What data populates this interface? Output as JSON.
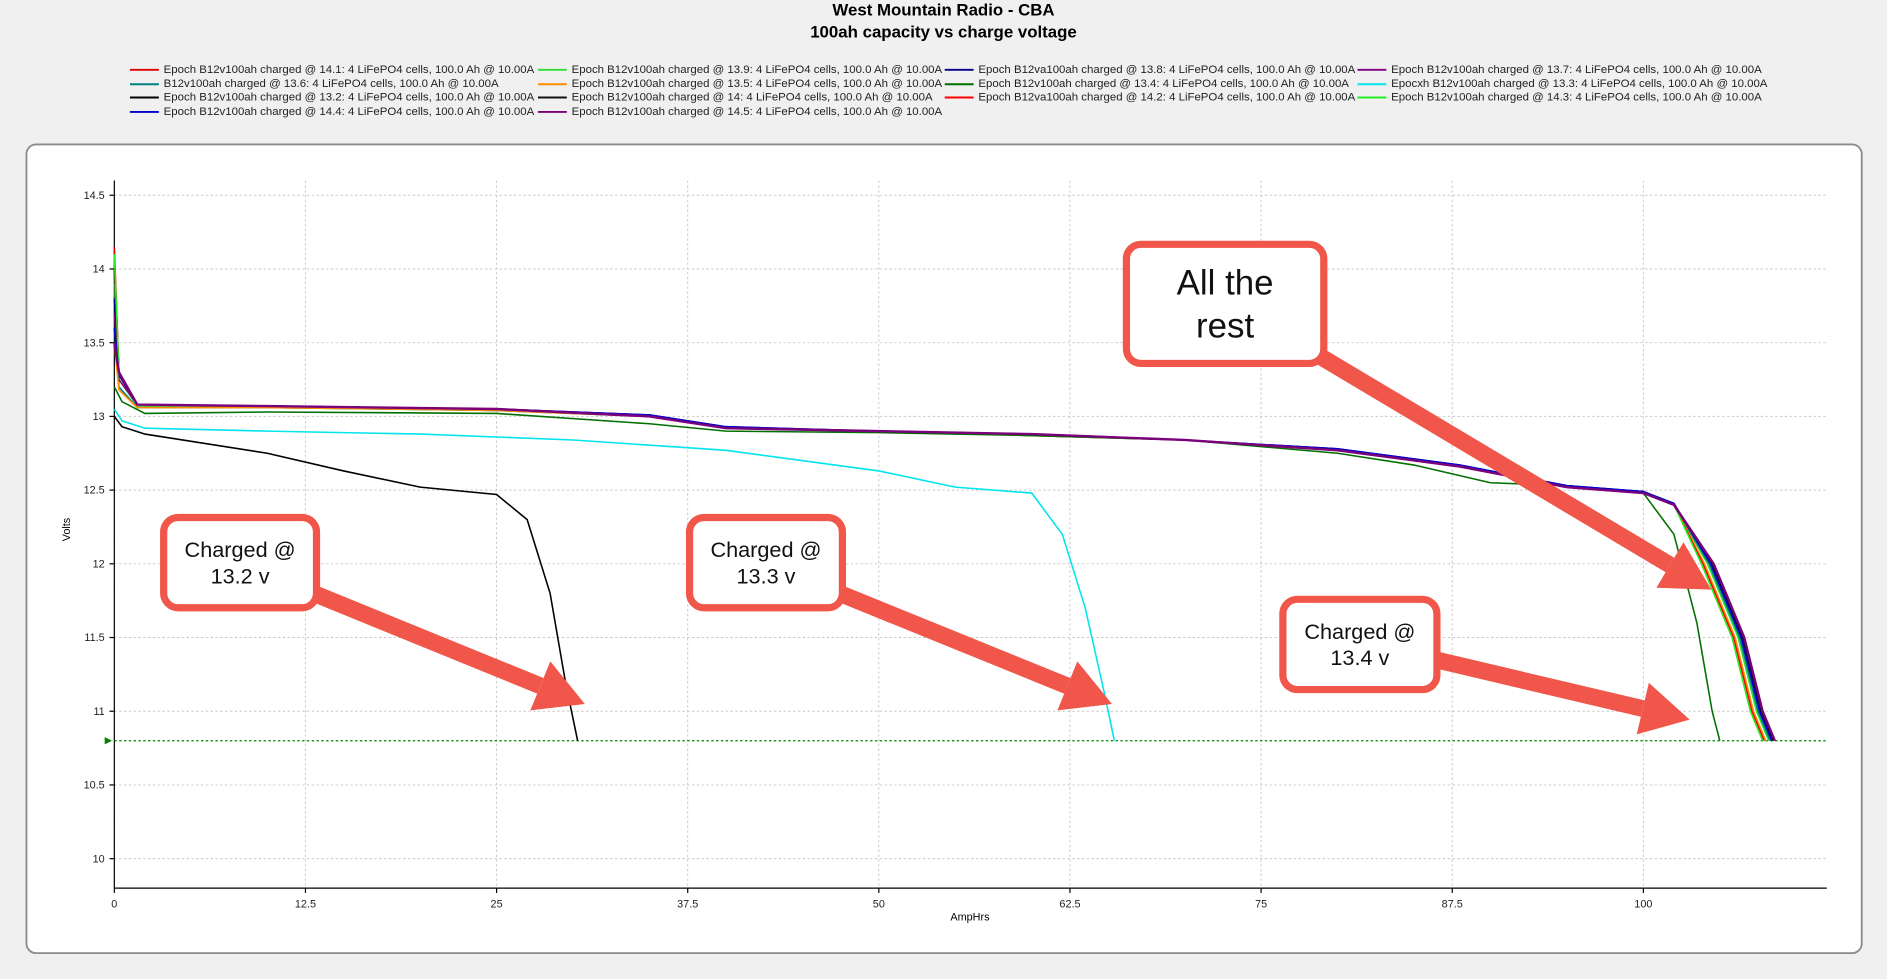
{
  "chart_data": {
    "type": "line",
    "title": "West Mountain Radio - CBA",
    "subtitle": "100ah capacity vs charge voltage",
    "x_label": "AmpHrs",
    "y_label": "Volts",
    "xlim": [
      0,
      112
    ],
    "ylim": [
      9.8,
      14.6
    ],
    "xticks": [
      0,
      12.5,
      25,
      37.5,
      50,
      62.5,
      75,
      87.5,
      100
    ],
    "yticks": [
      10,
      10.5,
      11,
      11.5,
      12,
      12.5,
      13,
      13.5,
      14,
      14.5
    ],
    "grid": true,
    "legend_position": "top",
    "hlines": [
      {
        "value": 10.8,
        "color": "#008000"
      }
    ],
    "series": [
      {
        "name": "Epoch B12v100ah charged @ 14.1: 4 LiFePO4 cells, 100.0 Ah @ 10.00A",
        "color": "#e00000",
        "x": [
          0,
          0.3,
          1.5,
          10,
          25,
          35,
          40,
          50,
          60,
          70,
          80,
          88,
          95,
          100,
          102,
          104.5,
          106.5,
          107.7,
          108.5
        ],
        "values": [
          14.15,
          13.3,
          13.08,
          13.07,
          13.05,
          13.0,
          12.92,
          12.9,
          12.88,
          12.84,
          12.77,
          12.66,
          12.52,
          12.48,
          12.4,
          12.0,
          11.5,
          11.0,
          10.8
        ]
      },
      {
        "name": "Epoch B12v100ah charged @ 13.9: 4 LiFePO4 cells, 100.0 Ah @ 10.00A",
        "color": "#33dd33",
        "x": [
          0,
          0.3,
          1.5,
          10,
          25,
          35,
          40,
          50,
          60,
          70,
          80,
          88,
          95,
          100,
          102,
          104.2,
          106.2,
          107.4,
          108.2
        ],
        "values": [
          13.9,
          13.25,
          13.07,
          13.06,
          13.04,
          13.0,
          12.92,
          12.9,
          12.87,
          12.84,
          12.77,
          12.66,
          12.52,
          12.48,
          12.4,
          12.0,
          11.5,
          11.0,
          10.8
        ]
      },
      {
        "name": "Epoch B12va100ah charged @ 13.8: 4 LiFePO4 cells, 100.0 Ah @ 10.00A",
        "color": "#00008b",
        "x": [
          0,
          0.3,
          1.5,
          10,
          25,
          35,
          40,
          50,
          60,
          70,
          80,
          88,
          95,
          100,
          102,
          104.4,
          106.4,
          107.6,
          108.4
        ],
        "values": [
          13.8,
          13.28,
          13.08,
          13.07,
          13.05,
          13.01,
          12.93,
          12.9,
          12.88,
          12.84,
          12.78,
          12.67,
          12.53,
          12.49,
          12.41,
          12.0,
          11.5,
          11.0,
          10.8
        ]
      },
      {
        "name": "Epoch B12v100ah charged @ 13.7: 4 LiFePO4 cells, 100.0 Ah @ 10.00A",
        "color": "#800080",
        "x": [
          0,
          0.3,
          1.5,
          10,
          25,
          35,
          40,
          50,
          60,
          70,
          80,
          88,
          95,
          100,
          102,
          104.6,
          106.6,
          107.8,
          108.6
        ],
        "values": [
          13.7,
          13.25,
          13.08,
          13.07,
          13.05,
          13.0,
          12.92,
          12.9,
          12.88,
          12.84,
          12.77,
          12.66,
          12.52,
          12.48,
          12.4,
          12.0,
          11.5,
          11.0,
          10.8
        ]
      },
      {
        "name": "B12v100ah charged @ 13.6: 4 LiFePO4 cells, 100.0 Ah @ 10.00A",
        "color": "#008080",
        "x": [
          0,
          0.3,
          1.5,
          10,
          25,
          35,
          40,
          50,
          60,
          70,
          80,
          88,
          95,
          100,
          102,
          104.3,
          106.3,
          107.5,
          108.3
        ],
        "values": [
          13.6,
          13.2,
          13.06,
          13.06,
          13.04,
          13.0,
          12.92,
          12.9,
          12.87,
          12.84,
          12.77,
          12.66,
          12.52,
          12.48,
          12.4,
          12.0,
          11.5,
          11.0,
          10.8
        ]
      },
      {
        "name": "Epoch B12v100ah charged @ 13.5: 4 LiFePO4 cells, 100.0 Ah @ 10.00A",
        "color": "#ff8c00",
        "x": [
          0,
          0.3,
          1.5,
          10,
          25,
          35,
          40,
          50,
          60,
          70,
          80,
          88,
          95,
          100,
          102,
          104,
          106,
          107.2,
          108
        ],
        "values": [
          13.5,
          13.18,
          13.06,
          13.06,
          13.04,
          13.0,
          12.92,
          12.9,
          12.87,
          12.84,
          12.77,
          12.66,
          12.52,
          12.48,
          12.4,
          12.0,
          11.5,
          11.0,
          10.8
        ]
      },
      {
        "name": "Epoch B12v100ah charged @ 13.4: 4 LiFePO4 cells, 100.0 Ah @ 10.00A",
        "color": "#007000",
        "x": [
          0,
          0.5,
          2,
          10,
          25,
          35,
          40,
          50,
          60,
          70,
          80,
          85,
          90,
          95,
          100,
          102,
          103.5,
          104.5,
          105
        ],
        "values": [
          13.2,
          13.1,
          13.02,
          13.03,
          13.02,
          12.95,
          12.9,
          12.89,
          12.87,
          12.84,
          12.75,
          12.67,
          12.55,
          12.53,
          12.48,
          12.2,
          11.6,
          11.0,
          10.8
        ]
      },
      {
        "name": "Epocxh B12v100ah charged @ 13.3: 4 LiFePO4 cells, 100.0 Ah @ 10.00A",
        "color": "#00e5ee",
        "x": [
          0,
          0.5,
          2,
          10,
          20,
          30,
          40,
          50,
          55,
          60,
          62,
          63.5,
          64.8,
          65.4
        ],
        "values": [
          13.05,
          12.97,
          12.92,
          12.9,
          12.88,
          12.84,
          12.77,
          12.63,
          12.52,
          12.48,
          12.2,
          11.7,
          11.1,
          10.8
        ]
      },
      {
        "name": "Epoch B12v100ah charged @ 13.2: 4 LiFePO4 cells, 100.0 Ah @ 10.00A",
        "color": "#000000",
        "x": [
          0,
          0.5,
          2,
          10,
          15,
          20,
          25,
          27,
          28.5,
          29.5,
          30.3
        ],
        "values": [
          13.0,
          12.93,
          12.88,
          12.75,
          12.63,
          12.52,
          12.47,
          12.3,
          11.8,
          11.2,
          10.8
        ]
      },
      {
        "name": "Epoch B12v100ah charged @ 14: 4 LiFePO4 cells, 100.0 Ah @ 10.00A",
        "color": "#111111",
        "x": [
          0,
          0.3,
          1.5,
          10,
          25,
          35,
          40,
          50,
          60,
          70,
          80,
          88,
          95,
          100,
          102,
          104.5,
          106.5,
          107.7,
          108.5
        ],
        "values": [
          14.0,
          13.3,
          13.08,
          13.07,
          13.05,
          13.0,
          12.92,
          12.9,
          12.88,
          12.84,
          12.77,
          12.66,
          12.52,
          12.48,
          12.4,
          12.0,
          11.5,
          11.0,
          10.8
        ]
      },
      {
        "name": "Epoch B12va100ah charged @ 14.2: 4 LiFePO4 cells, 100.0 Ah @ 10.00A",
        "color": "#ff0000",
        "x": [
          0,
          0.3,
          1.5,
          10,
          25,
          35,
          40,
          50,
          60,
          70,
          80,
          88,
          95,
          100,
          102,
          103.9,
          105.9,
          107.1,
          107.9
        ],
        "values": [
          14.1,
          13.3,
          13.08,
          13.07,
          13.05,
          13.0,
          12.92,
          12.9,
          12.88,
          12.84,
          12.77,
          12.66,
          12.52,
          12.48,
          12.4,
          12.0,
          11.5,
          11.0,
          10.8
        ]
      },
      {
        "name": "Epoch B12v100ah charged @ 14.3: 4 LiFePO4 cells, 100.0 Ah @ 10.00A",
        "color": "#22ee22",
        "x": [
          0,
          0.3,
          1.5,
          10,
          25,
          35,
          40,
          50,
          60,
          70,
          80,
          88,
          95,
          100,
          102,
          103.8,
          105.8,
          107,
          107.8
        ],
        "values": [
          14.1,
          13.3,
          13.08,
          13.07,
          13.05,
          13.0,
          12.92,
          12.9,
          12.88,
          12.84,
          12.77,
          12.66,
          12.52,
          12.48,
          12.4,
          12.0,
          11.5,
          11.0,
          10.8
        ]
      },
      {
        "name": "Epoch B12v100ah charged @ 14.4: 4 LiFePO4 cells, 100.0 Ah @ 10.00A",
        "color": "#0000cd",
        "x": [
          0,
          0.3,
          1.5,
          10,
          25,
          35,
          40,
          50,
          60,
          70,
          80,
          88,
          95,
          100,
          102,
          104.4,
          106.4,
          107.6,
          108.4
        ],
        "values": [
          13.6,
          13.3,
          13.08,
          13.07,
          13.05,
          13.01,
          12.93,
          12.9,
          12.88,
          12.84,
          12.78,
          12.67,
          12.53,
          12.49,
          12.41,
          12.0,
          11.5,
          11.0,
          10.8
        ]
      },
      {
        "name": "Epoch B12v100ah charged @ 14.5: 4 LiFePO4 cells, 100.0 Ah @ 10.00A",
        "color": "#7b007b",
        "x": [
          0,
          0.3,
          1.5,
          10,
          25,
          35,
          40,
          50,
          60,
          70,
          80,
          88,
          95,
          100,
          102,
          104.6,
          106.6,
          107.8,
          108.6
        ],
        "values": [
          13.5,
          13.3,
          13.08,
          13.07,
          13.05,
          13.0,
          12.92,
          12.9,
          12.88,
          12.84,
          12.77,
          12.66,
          12.52,
          12.48,
          12.4,
          12.0,
          11.5,
          11.0,
          10.8
        ]
      }
    ],
    "annotations": [
      {
        "lines": [
          "Charged @",
          "13.2 v"
        ]
      },
      {
        "lines": [
          "Charged @",
          "13.3 v"
        ]
      },
      {
        "lines": [
          "Charged @",
          "13.4 v"
        ]
      },
      {
        "lines": [
          "All the",
          "rest"
        ]
      }
    ]
  }
}
